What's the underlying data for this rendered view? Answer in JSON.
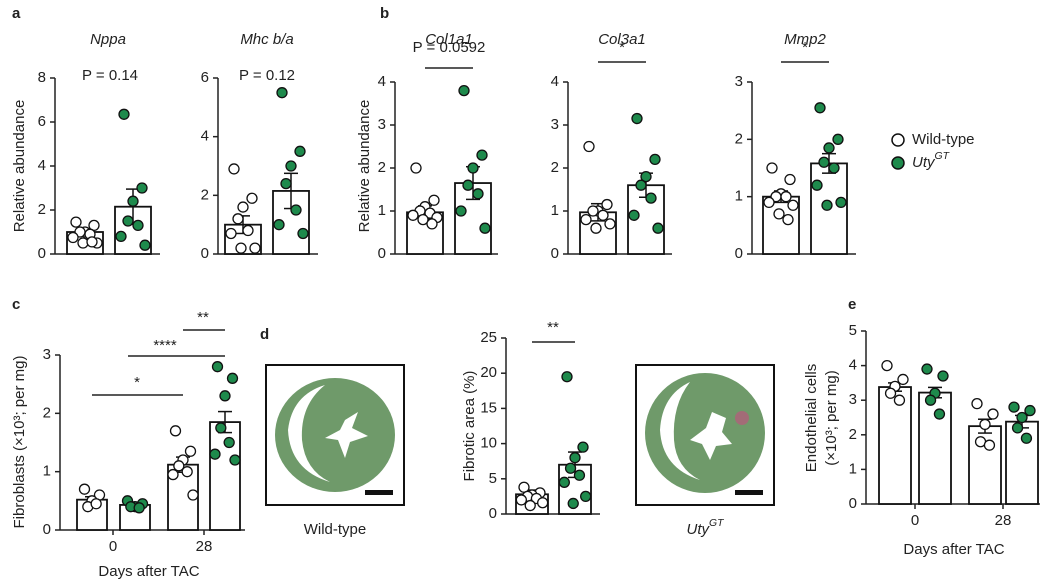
{
  "chart_data": [
    {
      "type": "bar",
      "panel": "a",
      "title": "Nppa",
      "ylabel": "Relative abundance",
      "ylim": [
        0,
        8
      ],
      "yticks": [
        0,
        2,
        4,
        6,
        8
      ],
      "series": [
        {
          "color": "#ffffff",
          "values": [
            1.0
          ],
          "errors": [
            0.15
          ],
          "points": [
            [
              1.45,
              1.3,
              1.0,
              1.0,
              0.9,
              0.75,
              0.5,
              0.5,
              0.55
            ]
          ]
        },
        {
          "color": "#1e8a4c",
          "values": [
            2.15
          ],
          "errors": [
            0.8
          ],
          "points": [
            [
              6.35,
              3.0,
              2.4,
              1.5,
              1.3,
              0.8,
              0.4
            ]
          ]
        }
      ],
      "annotations": [
        "P = 0.14"
      ]
    },
    {
      "type": "bar",
      "title": "Mhc b/a",
      "ylim": [
        0,
        6
      ],
      "yticks": [
        0,
        2,
        4,
        6
      ],
      "series": [
        {
          "color": "#ffffff",
          "values": [
            1.0
          ],
          "errors": [
            0.3
          ],
          "points": [
            [
              2.9,
              1.9,
              1.6,
              1.2,
              0.8,
              0.7,
              0.2,
              0.2
            ]
          ]
        },
        {
          "color": "#1e8a4c",
          "values": [
            2.15
          ],
          "errors": [
            0.6
          ],
          "points": [
            [
              5.5,
              3.5,
              3.0,
              2.4,
              1.5,
              1.0,
              0.7
            ]
          ]
        }
      ],
      "annotations": [
        "P = 0.12"
      ]
    },
    {
      "type": "bar",
      "panel": "b",
      "title": "Col1a1",
      "ylabel": "Relative abundance",
      "ylim": [
        0,
        4
      ],
      "yticks": [
        0,
        1,
        2,
        3,
        4
      ],
      "series": [
        {
          "color": "#ffffff",
          "values": [
            0.97
          ],
          "errors": [
            0.15
          ],
          "points": [
            [
              2.0,
              1.25,
              1.1,
              1.0,
              0.95,
              0.9,
              0.85,
              0.8,
              0.7
            ]
          ]
        },
        {
          "color": "#1e8a4c",
          "values": [
            1.65
          ],
          "errors": [
            0.38
          ],
          "points": [
            [
              3.8,
              2.3,
              2.0,
              1.6,
              1.4,
              1.0,
              0.6
            ]
          ]
        }
      ],
      "annotations": [
        "P = 0.0592"
      ]
    },
    {
      "type": "bar",
      "title": "Col3a1",
      "ylim": [
        0,
        4
      ],
      "yticks": [
        0,
        1,
        2,
        3,
        4
      ],
      "series": [
        {
          "color": "#ffffff",
          "values": [
            0.97
          ],
          "errors": [
            0.2
          ],
          "points": [
            [
              2.5,
              1.15,
              1.0,
              1.0,
              0.9,
              0.8,
              0.7,
              0.6
            ]
          ]
        },
        {
          "color": "#1e8a4c",
          "values": [
            1.6
          ],
          "errors": [
            0.28
          ],
          "points": [
            [
              3.15,
              2.2,
              1.8,
              1.6,
              1.3,
              0.9,
              0.6
            ]
          ]
        }
      ],
      "annotations": [
        "*"
      ]
    },
    {
      "type": "bar",
      "title": "Mmp2",
      "ylim": [
        0,
        3
      ],
      "yticks": [
        0,
        1,
        2,
        3
      ],
      "series": [
        {
          "name": "Wild-type",
          "color": "#ffffff",
          "values": [
            1.0
          ],
          "errors": [
            0.1
          ],
          "points": [
            [
              1.5,
              1.3,
              1.05,
              1.0,
              1.0,
              0.9,
              0.85,
              0.7,
              0.6
            ]
          ]
        },
        {
          "name": "Uty",
          "name_sup": "GT",
          "color": "#1e8a4c",
          "values": [
            1.58
          ],
          "errors": [
            0.17
          ],
          "points": [
            [
              2.55,
              2.0,
              1.85,
              1.6,
              1.5,
              1.2,
              0.9,
              0.85
            ]
          ]
        }
      ],
      "annotations": [
        "*"
      ]
    },
    {
      "type": "bar",
      "panel": "c",
      "ylabel": "Fibroblasts (×10³; per mg)",
      "xlabel": "Days after TAC",
      "categories": [
        "0",
        "28"
      ],
      "ylim": [
        0,
        3
      ],
      "yticks": [
        0,
        1,
        2,
        3
      ],
      "series": [
        {
          "color": "#ffffff",
          "values": [
            0.52,
            1.12
          ],
          "errors": [
            0.05,
            0.13
          ],
          "points": [
            [
              0.7,
              0.6,
              0.5,
              0.4,
              0.45
            ],
            [
              1.7,
              1.35,
              1.2,
              1.1,
              1.0,
              0.95,
              0.6
            ]
          ]
        },
        {
          "color": "#1e8a4c",
          "values": [
            0.43,
            1.85
          ],
          "errors": [
            0.03,
            0.18
          ],
          "points": [
            [
              0.5,
              0.45,
              0.4,
              0.4,
              0.38
            ],
            [
              2.8,
              2.6,
              2.3,
              1.75,
              1.5,
              1.3,
              1.2
            ]
          ]
        }
      ],
      "annotations": [
        "*",
        "****",
        "**"
      ]
    },
    {
      "type": "bar",
      "panel": "d",
      "ylabel": "Fibrotic area (%)",
      "ylim": [
        0,
        25
      ],
      "yticks": [
        0,
        5,
        10,
        15,
        20,
        25
      ],
      "image_labels": [
        {
          "text": "Wild-type"
        },
        {
          "text": "Uty",
          "sup": "GT"
        }
      ],
      "series": [
        {
          "color": "#ffffff",
          "values": [
            2.8
          ],
          "errors": [
            0.6
          ],
          "points": [
            [
              3.8,
              3.0,
              2.7,
              2.5,
              2.2,
              2.0,
              1.6,
              1.2
            ]
          ]
        },
        {
          "color": "#1e8a4c",
          "values": [
            7.0
          ],
          "errors": [
            1.8
          ],
          "points": [
            [
              19.5,
              9.5,
              8.0,
              6.5,
              5.5,
              4.5,
              2.5,
              1.5
            ]
          ]
        }
      ],
      "annotations": [
        "**"
      ]
    },
    {
      "type": "bar",
      "panel": "e",
      "ylabel": [
        "Endothelial cells",
        "(×10³; per mg)"
      ],
      "xlabel": "Days after TAC",
      "categories": [
        "0",
        "28"
      ],
      "ylim": [
        0,
        5
      ],
      "yticks": [
        0,
        1,
        2,
        3,
        4,
        5
      ],
      "series": [
        {
          "color": "#ffffff",
          "values": [
            3.38,
            2.25
          ],
          "errors": [
            0.12,
            0.2
          ],
          "points": [
            [
              4.0,
              3.6,
              3.4,
              3.2,
              3.0
            ],
            [
              2.9,
              2.6,
              2.3,
              1.8,
              1.7
            ]
          ]
        },
        {
          "color": "#1e8a4c",
          "values": [
            3.22,
            2.38
          ],
          "errors": [
            0.15,
            0.18
          ],
          "points": [
            [
              3.9,
              3.7,
              3.2,
              3.0,
              2.6
            ],
            [
              2.8,
              2.7,
              2.5,
              2.2,
              1.9
            ]
          ]
        }
      ],
      "annotations": []
    }
  ]
}
